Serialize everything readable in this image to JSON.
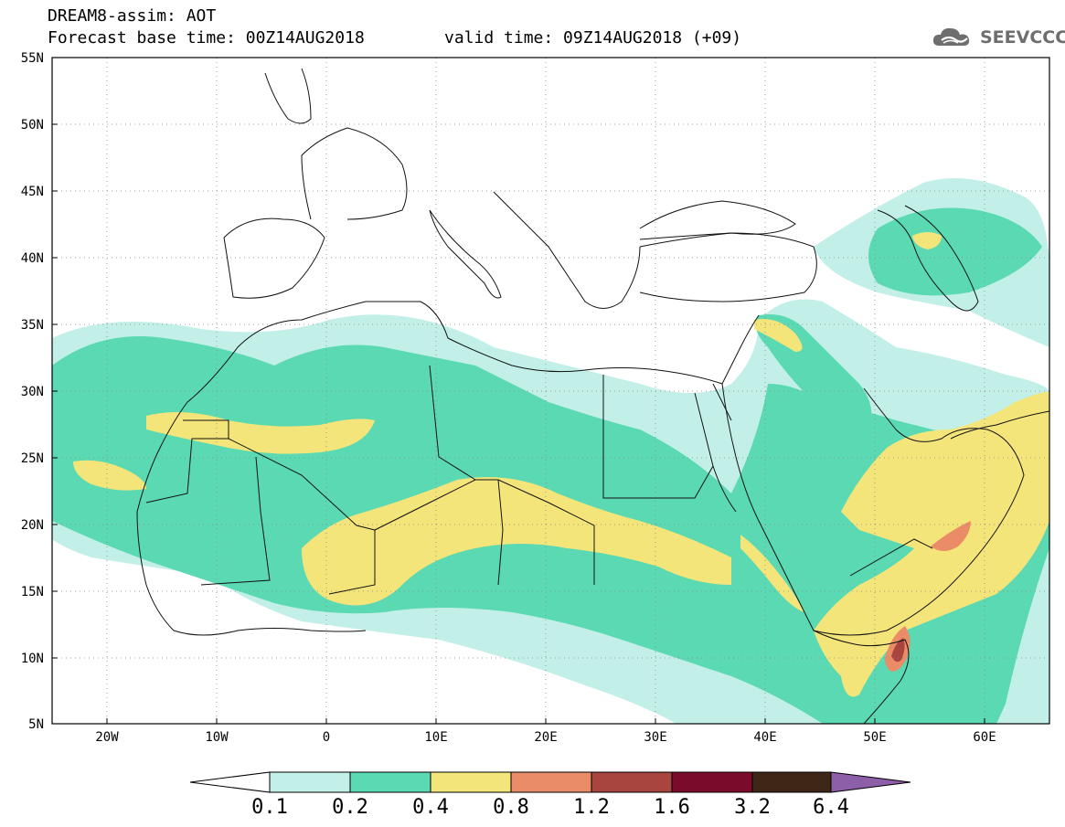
{
  "header": {
    "title_line1": "DREAM8-assim: AOT",
    "title_line2": "Forecast base time: 00Z14AUG2018",
    "valid_time": "valid time: 09Z14AUG2018 (+09)",
    "logo_text": "SEEVCCC"
  },
  "axes": {
    "lat_labels": [
      "55N",
      "50N",
      "45N",
      "40N",
      "35N",
      "30N",
      "25N",
      "20N",
      "15N",
      "10N",
      "5N"
    ],
    "lon_labels": [
      "20W",
      "10W",
      "0",
      "10E",
      "20E",
      "30E",
      "40E",
      "50E",
      "60E"
    ]
  },
  "colorbar": {
    "levels": [
      "0.1",
      "0.2",
      "0.4",
      "0.8",
      "1.2",
      "1.6",
      "3.2",
      "6.4"
    ],
    "colors": {
      "under": "#ffffff",
      "b1": "#c2efe7",
      "b2": "#5ad9b2",
      "b3": "#f4e57a",
      "b4": "#e98c67",
      "b5": "#a8453f",
      "b6": "#7a0b2a",
      "b7": "#3e2716",
      "over": "#8c5fa8"
    }
  }
}
